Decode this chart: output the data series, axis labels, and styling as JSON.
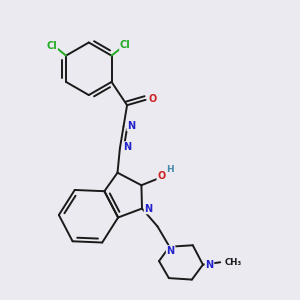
{
  "background_color": "#eaeaf0",
  "bond_color": "#1a1a1a",
  "bond_width": 1.4,
  "dbo": 0.07,
  "atom_colors": {
    "N": "#2222cc",
    "O": "#cc2222",
    "Cl": "#22aa22",
    "H": "#4488aa"
  },
  "afs": 7.0
}
